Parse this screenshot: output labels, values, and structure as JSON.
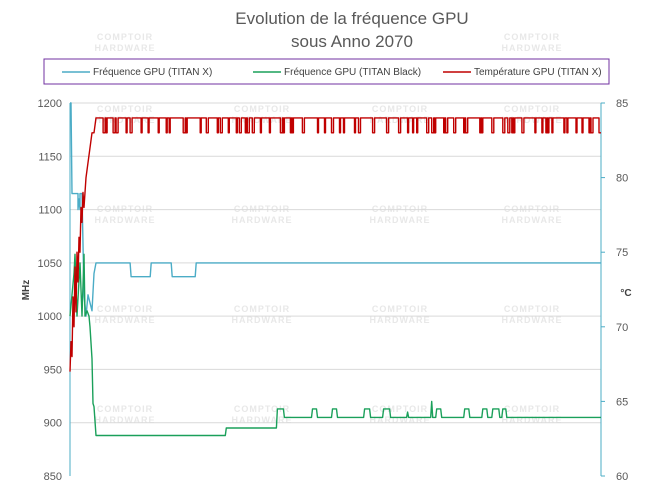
{
  "chart_data": {
    "type": "line",
    "title": "Evolution de la fréquence GPU",
    "subtitle": "sous Anno 2070",
    "ylabel": "MHz",
    "y2label": "°C",
    "ylim": [
      850,
      1200
    ],
    "y2lim": [
      60,
      85
    ],
    "yticks": [
      850,
      900,
      950,
      1000,
      1050,
      1100,
      1150,
      1200
    ],
    "y2ticks": [
      60,
      65,
      70,
      75,
      80,
      85
    ],
    "grid": true,
    "legend_position": "top",
    "xlim": [
      0,
      530
    ],
    "series": [
      {
        "name": "Fréquence GPU (TITAN X)",
        "axis": "left",
        "color": "#4bacc6",
        "points": [
          [
            0,
            1200
          ],
          [
            1,
            1200
          ],
          [
            2,
            1115
          ],
          [
            8,
            1115
          ],
          [
            8,
            1100
          ],
          [
            9,
            1110
          ],
          [
            10,
            1100
          ],
          [
            10,
            1115
          ],
          [
            12,
            1115
          ],
          [
            14,
            1020
          ],
          [
            16,
            1000
          ],
          [
            18,
            1020
          ],
          [
            22,
            1005
          ],
          [
            24,
            1040
          ],
          [
            26,
            1050
          ],
          [
            60,
            1050
          ],
          [
            61,
            1037
          ],
          [
            80,
            1037
          ],
          [
            81,
            1050
          ],
          [
            101,
            1050
          ],
          [
            102,
            1037
          ],
          [
            125,
            1037
          ],
          [
            126,
            1050
          ],
          [
            530,
            1050
          ]
        ]
      },
      {
        "name": "Fréquence GPU (TITAN Black)",
        "axis": "left",
        "color": "#1aa05a",
        "points": [
          [
            0,
            1000
          ],
          [
            2,
            1020
          ],
          [
            4,
            1040
          ],
          [
            5,
            1058
          ],
          [
            7,
            1000
          ],
          [
            10,
            1050
          ],
          [
            12,
            1000
          ],
          [
            14,
            1058
          ],
          [
            15,
            1000
          ],
          [
            17,
            1005
          ],
          [
            19,
            1000
          ],
          [
            20,
            990
          ],
          [
            22,
            960
          ],
          [
            23,
            918
          ],
          [
            24,
            915
          ],
          [
            26,
            888
          ],
          [
            155,
            888
          ],
          [
            156,
            895
          ],
          [
            206,
            895
          ],
          [
            207,
            913
          ],
          [
            213,
            913
          ],
          [
            214,
            905
          ],
          [
            241,
            905
          ],
          [
            242,
            913
          ],
          [
            246,
            913
          ],
          [
            247,
            905
          ],
          [
            261,
            905
          ],
          [
            262,
            913
          ],
          [
            266,
            913
          ],
          [
            267,
            905
          ],
          [
            293,
            905
          ],
          [
            294,
            913
          ],
          [
            299,
            913
          ],
          [
            300,
            905
          ],
          [
            312,
            905
          ],
          [
            313,
            913
          ],
          [
            319,
            913
          ],
          [
            320,
            905
          ],
          [
            336,
            905
          ],
          [
            337,
            910
          ],
          [
            338,
            905
          ],
          [
            360,
            905
          ],
          [
            361,
            920
          ],
          [
            362,
            905
          ],
          [
            365,
            905
          ],
          [
            366,
            913
          ],
          [
            370,
            913
          ],
          [
            371,
            905
          ],
          [
            393,
            905
          ],
          [
            394,
            913
          ],
          [
            398,
            913
          ],
          [
            399,
            905
          ],
          [
            411,
            905
          ],
          [
            412,
            913
          ],
          [
            416,
            913
          ],
          [
            417,
            905
          ],
          [
            421,
            905
          ],
          [
            422,
            913
          ],
          [
            428,
            913
          ],
          [
            429,
            905
          ],
          [
            431,
            905
          ],
          [
            432,
            913
          ],
          [
            435,
            913
          ],
          [
            436,
            905
          ],
          [
            530,
            905
          ]
        ]
      },
      {
        "name": "Température GPU (TITAN X)",
        "axis": "right",
        "color": "#c00000",
        "points": [
          [
            0,
            67
          ],
          [
            1,
            69
          ],
          [
            2,
            68
          ],
          [
            3,
            72
          ],
          [
            4,
            70
          ],
          [
            5,
            74
          ],
          [
            6,
            71
          ],
          [
            7,
            75
          ],
          [
            8,
            73
          ],
          [
            9,
            76
          ],
          [
            10,
            75
          ],
          [
            11,
            78
          ],
          [
            12,
            77
          ],
          [
            13,
            79
          ],
          [
            14,
            78
          ],
          [
            16,
            80
          ],
          [
            18,
            81
          ],
          [
            20,
            82
          ],
          [
            22,
            83
          ],
          [
            24,
            83
          ],
          [
            26,
            84
          ]
        ],
        "plateau": {
          "low": 83,
          "high": 84,
          "x_start": 26,
          "x_end": 530
        }
      }
    ]
  },
  "watermark": {
    "line1": "COMPTOIR",
    "line2": "HARDWARE"
  }
}
